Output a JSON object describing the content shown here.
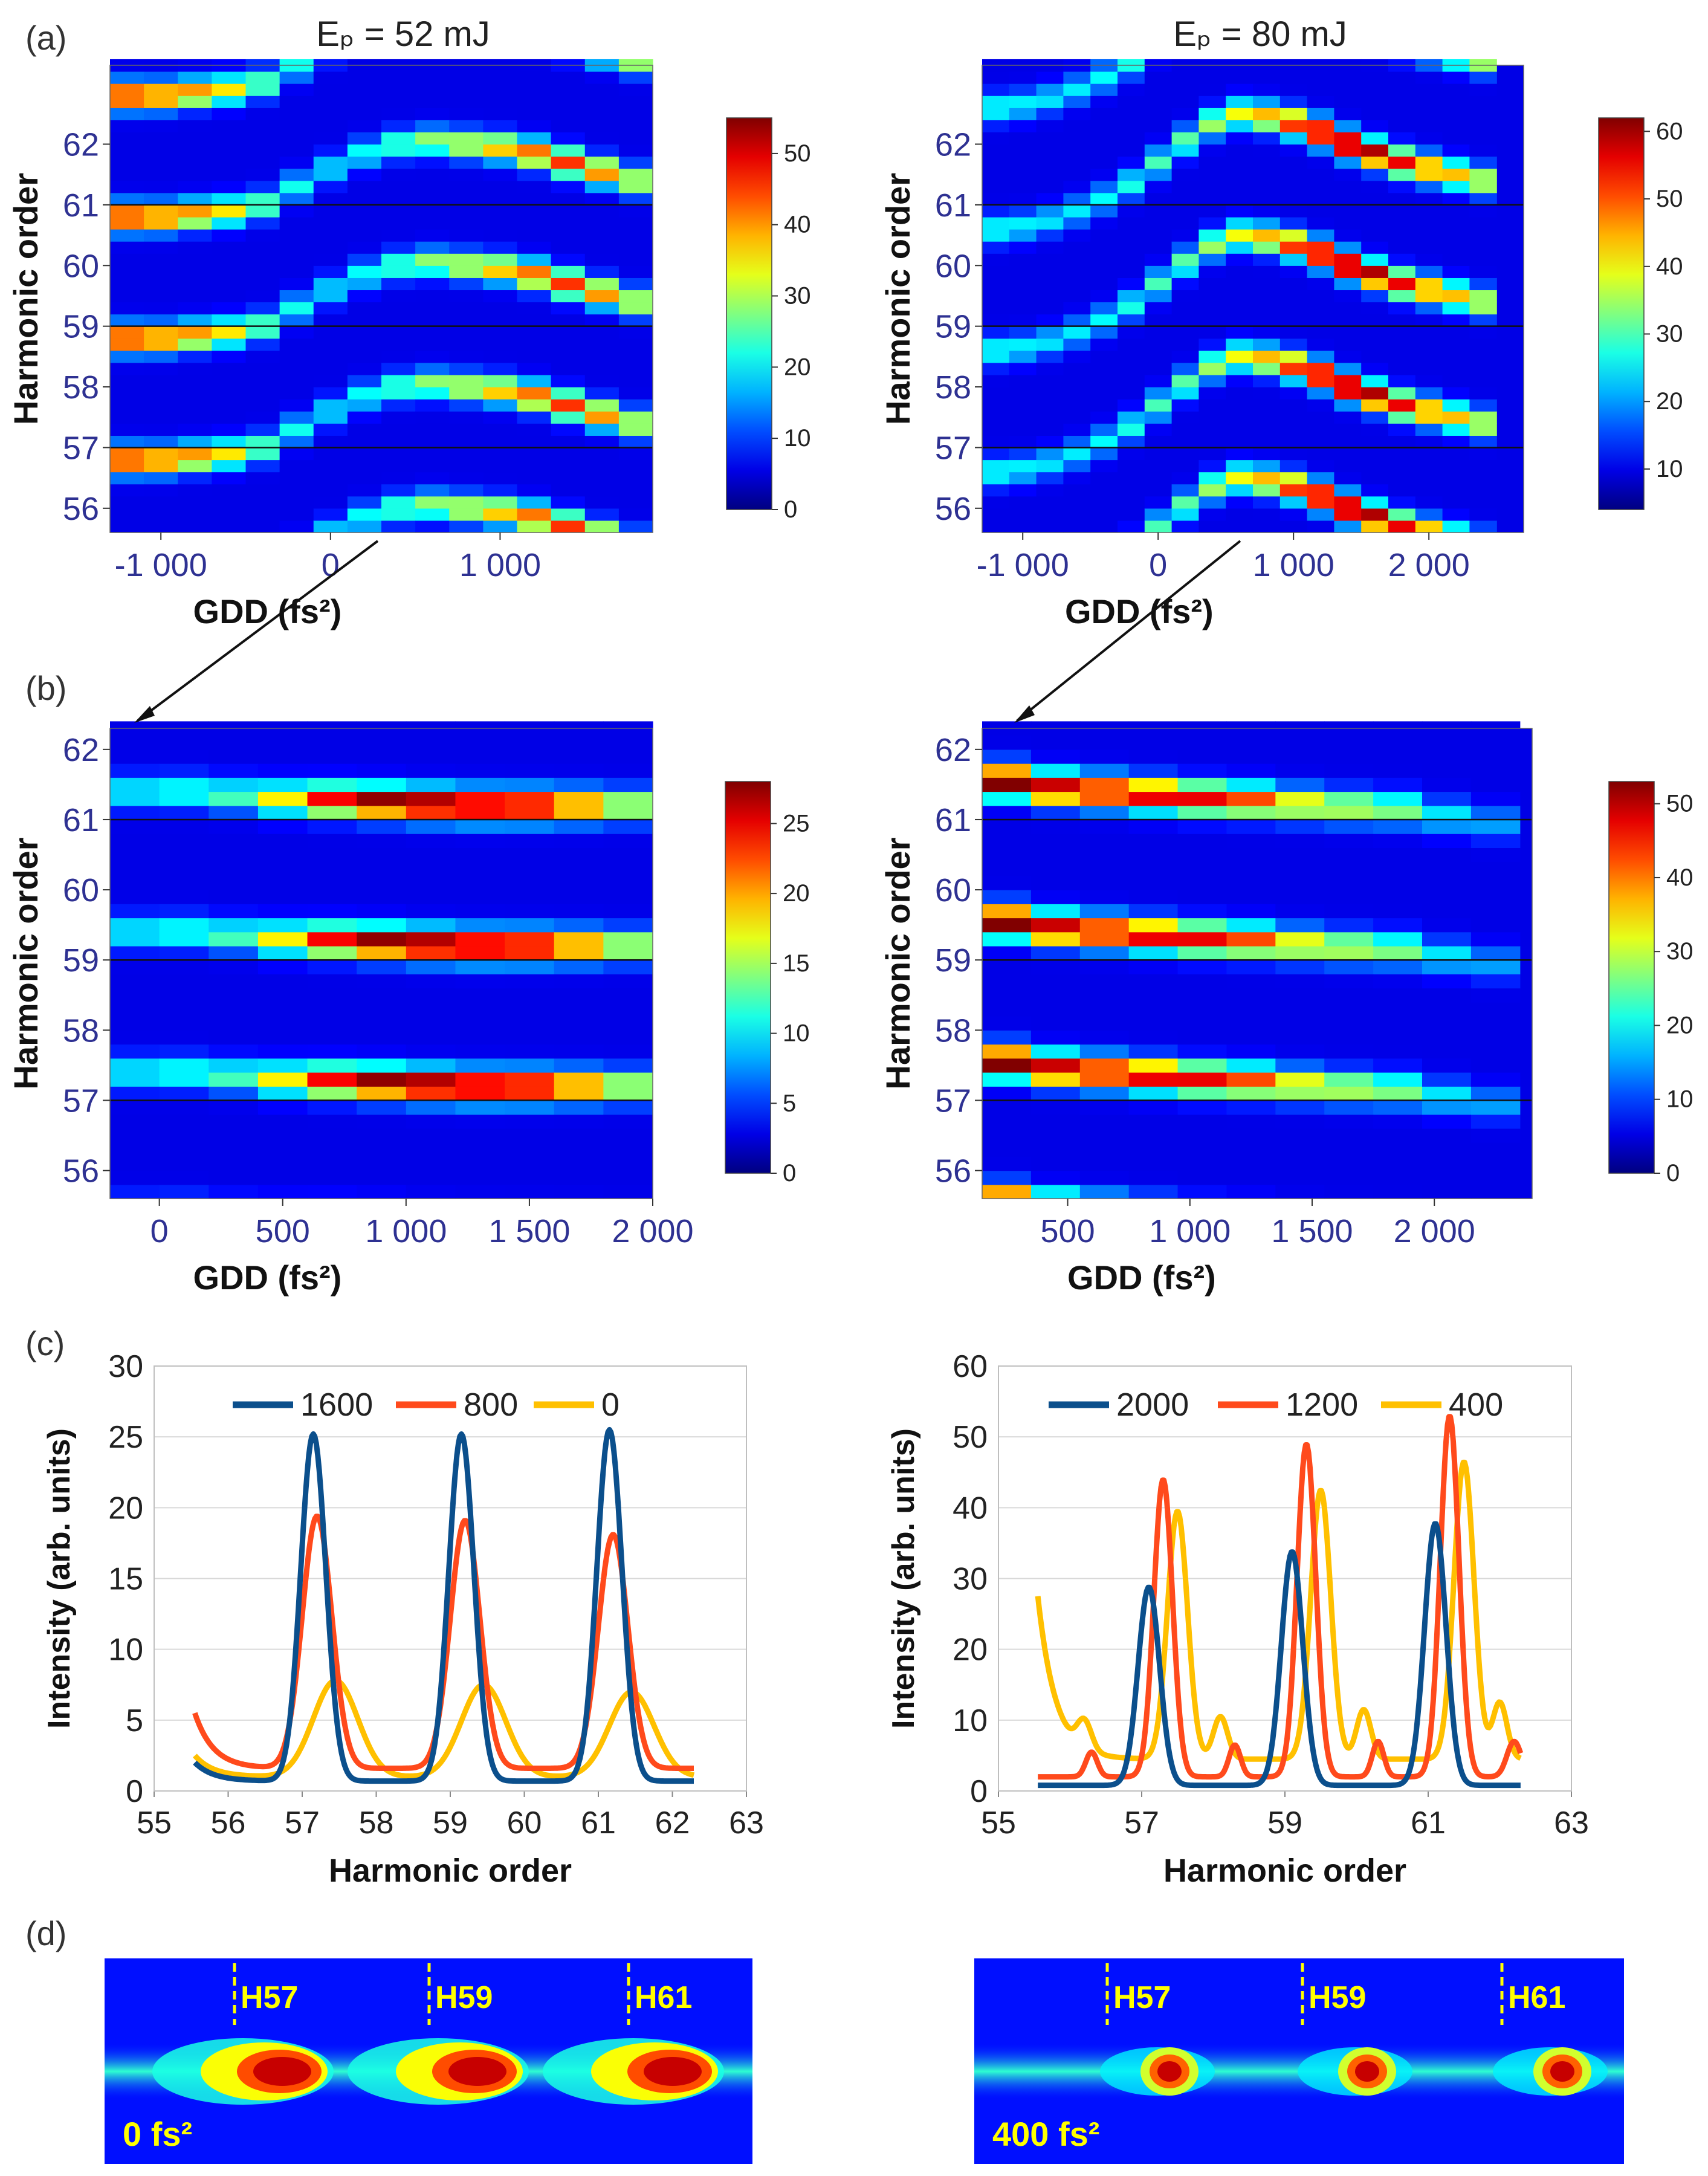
{
  "panel_labels": [
    "(a)",
    "(b)",
    "(c)",
    "(d)"
  ],
  "colors": {
    "tick_text": "#2e3192",
    "line_dark_blue": "#0b4f8c",
    "line_red": "#ff4a1c",
    "line_yellow": "#ffc000",
    "h_label": "#ffff00",
    "grid": "#d9d9d9"
  },
  "chart_data": [
    {
      "id": "a-left",
      "type": "heatmap",
      "title": "Eₚ = 52 mJ",
      "xlabel": "GDD (fs²)",
      "ylabel": "Harmonic order",
      "xlim": [
        -1300,
        1900
      ],
      "ylim": [
        55.6,
        63.3
      ],
      "xticks": [
        {
          "v": -1000,
          "label": "-1 000"
        },
        {
          "v": 0,
          "label": "0"
        },
        {
          "v": 1000,
          "label": "1 000"
        }
      ],
      "yticks": [
        {
          "v": 56,
          "label": "56"
        },
        {
          "v": 57,
          "label": "57"
        },
        {
          "v": 58,
          "label": "58"
        },
        {
          "v": 59,
          "label": "59"
        },
        {
          "v": 60,
          "label": "60"
        },
        {
          "v": 61,
          "label": "61"
        },
        {
          "v": 62,
          "label": "62"
        }
      ],
      "reference_lines": [
        57,
        59,
        61
      ],
      "colorbar": {
        "min": 0,
        "max": 55,
        "ticks": [
          0,
          10,
          20,
          30,
          40,
          50
        ]
      },
      "columns": [
        -1200,
        -1000,
        -800,
        -600,
        -400,
        -200,
        0,
        200,
        400,
        600,
        800,
        1000,
        1200,
        1400,
        1600,
        1800
      ],
      "peak_shift": [
        -0.2,
        -0.2,
        -0.15,
        -0.1,
        0.0,
        0.3,
        0.6,
        0.85,
        1.0,
        1.05,
        1.0,
        0.95,
        0.85,
        0.7,
        0.55,
        0.4
      ],
      "peak_intensity": [
        44,
        40,
        36,
        30,
        22,
        16,
        14,
        16,
        20,
        24,
        28,
        33,
        38,
        40,
        36,
        28
      ]
    },
    {
      "id": "a-right",
      "type": "heatmap",
      "title": "Eₚ = 80 mJ",
      "xlabel": "GDD (fs²)",
      "ylabel": "Harmonic order",
      "xlim": [
        -1300,
        2700
      ],
      "ylim": [
        55.6,
        63.3
      ],
      "xticks": [
        {
          "v": -1000,
          "label": "-1 000"
        },
        {
          "v": 0,
          "label": "0"
        },
        {
          "v": 1000,
          "label": "1 000"
        },
        {
          "v": 2000,
          "label": "2 000"
        }
      ],
      "yticks": [
        {
          "v": 56,
          "label": "56"
        },
        {
          "v": 57,
          "label": "57"
        },
        {
          "v": 58,
          "label": "58"
        },
        {
          "v": 59,
          "label": "59"
        },
        {
          "v": 60,
          "label": "60"
        },
        {
          "v": 61,
          "label": "61"
        },
        {
          "v": 62,
          "label": "62"
        }
      ],
      "reference_lines": [
        57,
        59,
        61
      ],
      "colorbar": {
        "min": 4,
        "max": 62,
        "ticks": [
          10,
          20,
          30,
          40,
          50,
          60
        ]
      },
      "columns": [
        -1200,
        -1000,
        -800,
        -600,
        -400,
        -200,
        0,
        200,
        400,
        600,
        800,
        1000,
        1200,
        1400,
        1600,
        1800,
        2000,
        2200,
        2400
      ],
      "peak_shift": [
        -0.4,
        -0.35,
        -0.25,
        -0.1,
        0.1,
        0.35,
        0.7,
        1.05,
        1.35,
        1.5,
        1.45,
        1.35,
        1.2,
        1.0,
        0.85,
        0.7,
        0.6,
        0.5,
        0.4
      ],
      "peak_intensity": [
        18,
        16,
        15,
        15,
        16,
        18,
        20,
        22,
        26,
        30,
        36,
        44,
        52,
        56,
        52,
        46,
        40,
        34,
        30
      ]
    },
    {
      "id": "b-left",
      "type": "heatmap",
      "xlabel": "GDD (fs²)",
      "ylabel": "Harmonic order",
      "xlim": [
        -200,
        2000
      ],
      "ylim": [
        55.6,
        62.3
      ],
      "xticks": [
        {
          "v": 0,
          "label": "0"
        },
        {
          "v": 500,
          "label": "500"
        },
        {
          "v": 1000,
          "label": "1 000"
        },
        {
          "v": 1500,
          "label": "1 500"
        },
        {
          "v": 2000,
          "label": "2 000"
        }
      ],
      "yticks": [
        {
          "v": 56,
          "label": "56"
        },
        {
          "v": 57,
          "label": "57"
        },
        {
          "v": 58,
          "label": "58"
        },
        {
          "v": 59,
          "label": "59"
        },
        {
          "v": 60,
          "label": "60"
        },
        {
          "v": 61,
          "label": "61"
        },
        {
          "v": 62,
          "label": "62"
        }
      ],
      "reference_lines": [
        57,
        59,
        61
      ],
      "colorbar": {
        "min": 0,
        "max": 28,
        "ticks": [
          0,
          5,
          10,
          15,
          20,
          25
        ]
      },
      "columns": [
        -100,
        100,
        300,
        500,
        700,
        900,
        1100,
        1300,
        1500,
        1700,
        1900
      ],
      "peak_shift": [
        0.4,
        0.4,
        0.35,
        0.3,
        0.28,
        0.25,
        0.22,
        0.2,
        0.2,
        0.2,
        0.2
      ],
      "peak_intensity": [
        8,
        9,
        10,
        15,
        22,
        26,
        27,
        26,
        25,
        20,
        14
      ]
    },
    {
      "id": "b-right",
      "type": "heatmap",
      "xlabel": "GDD (fs²)",
      "ylabel": "Harmonic order",
      "xlim": [
        150,
        2400
      ],
      "ylim": [
        55.6,
        62.3
      ],
      "xticks": [
        {
          "v": 500,
          "label": "500"
        },
        {
          "v": 1000,
          "label": "1 000"
        },
        {
          "v": 1500,
          "label": "1 500"
        },
        {
          "v": 2000,
          "label": "2 000"
        }
      ],
      "yticks": [
        {
          "v": 56,
          "label": "56"
        },
        {
          "v": 57,
          "label": "57"
        },
        {
          "v": 58,
          "label": "58"
        },
        {
          "v": 59,
          "label": "59"
        },
        {
          "v": 60,
          "label": "60"
        },
        {
          "v": 61,
          "label": "61"
        },
        {
          "v": 62,
          "label": "62"
        }
      ],
      "reference_lines": [
        57,
        59,
        61
      ],
      "colorbar": {
        "min": 0,
        "max": 53,
        "ticks": [
          0,
          10,
          20,
          30,
          40,
          50
        ]
      },
      "columns": [
        250,
        450,
        650,
        850,
        1050,
        1250,
        1450,
        1650,
        1850,
        2050,
        2250
      ],
      "peak_shift": [
        0.55,
        0.45,
        0.4,
        0.35,
        0.3,
        0.27,
        0.22,
        0.18,
        0.15,
        0.05,
        -0.05
      ],
      "peak_intensity": [
        50,
        46,
        44,
        44,
        42,
        38,
        30,
        26,
        22,
        14,
        10
      ]
    },
    {
      "id": "c-left",
      "type": "line",
      "xlabel": "Harmonic order",
      "ylabel": "Intensity (arb. units)",
      "xlim": [
        55,
        63
      ],
      "ylim": [
        0,
        30
      ],
      "xticks": [
        55,
        56,
        57,
        58,
        59,
        60,
        61,
        62,
        63
      ],
      "yticks": [
        0,
        5,
        10,
        15,
        20,
        25,
        30
      ],
      "legend_position": "top",
      "series": [
        {
          "name": "1600",
          "color": "#0b4f8c",
          "baseline": 0.7,
          "base_start": 2.0,
          "peaks": [
            {
              "x": 57.15,
              "h": 24.5,
              "w": 0.17
            },
            {
              "x": 59.15,
              "h": 24.5,
              "w": 0.17
            },
            {
              "x": 61.15,
              "h": 24.8,
              "w": 0.17
            }
          ]
        },
        {
          "name": "800",
          "color": "#ff4a1c",
          "baseline": 1.6,
          "base_start": 5.5,
          "peaks": [
            {
              "x": 57.2,
              "h": 17.8,
              "w": 0.2
            },
            {
              "x": 59.2,
              "h": 17.5,
              "w": 0.2
            },
            {
              "x": 61.2,
              "h": 16.5,
              "w": 0.2
            }
          ]
        },
        {
          "name": "0",
          "color": "#ffc000",
          "baseline": 1.0,
          "base_start": 2.5,
          "peaks": [
            {
              "x": 57.45,
              "h": 6.8,
              "w": 0.3
            },
            {
              "x": 59.45,
              "h": 6.5,
              "w": 0.3
            },
            {
              "x": 61.45,
              "h": 6.0,
              "w": 0.3
            }
          ]
        }
      ]
    },
    {
      "id": "c-right",
      "type": "line",
      "xlabel": "Harmonic order",
      "ylabel": "Intensity (arb. units)",
      "xlim": [
        55,
        63
      ],
      "ylim": [
        0,
        60
      ],
      "xticks": [
        55,
        57,
        59,
        61,
        63
      ],
      "yticks": [
        0,
        10,
        20,
        30,
        40,
        50,
        60
      ],
      "legend_position": "top",
      "series": [
        {
          "name": "2000",
          "color": "#0b4f8c",
          "baseline": 0.8,
          "base_start": 0.8,
          "peaks": [
            {
              "x": 57.1,
              "h": 28,
              "w": 0.15
            },
            {
              "x": 59.1,
              "h": 33,
              "w": 0.15
            },
            {
              "x": 61.1,
              "h": 37,
              "w": 0.15
            }
          ]
        },
        {
          "name": "1200",
          "color": "#ff4a1c",
          "baseline": 2.0,
          "base_start": 2.0,
          "peaks": [
            {
              "x": 57.3,
              "h": 42,
              "w": 0.13
            },
            {
              "x": 59.3,
              "h": 47,
              "w": 0.13
            },
            {
              "x": 61.3,
              "h": 51,
              "w": 0.13
            },
            {
              "x": 56.3,
              "h": 3.5,
              "w": 0.08
            },
            {
              "x": 58.3,
              "h": 4.5,
              "w": 0.08
            },
            {
              "x": 60.3,
              "h": 5,
              "w": 0.08
            },
            {
              "x": 62.2,
              "h": 5,
              "w": 0.1
            }
          ]
        },
        {
          "name": "400",
          "color": "#ffc000",
          "baseline": 4.5,
          "base_start": 27.5,
          "peaks": [
            {
              "x": 57.5,
              "h": 35,
              "w": 0.14
            },
            {
              "x": 59.5,
              "h": 38,
              "w": 0.14
            },
            {
              "x": 61.5,
              "h": 42,
              "w": 0.14
            },
            {
              "x": 56.2,
              "h": 4,
              "w": 0.1
            },
            {
              "x": 58.1,
              "h": 6,
              "w": 0.1
            },
            {
              "x": 60.1,
              "h": 7,
              "w": 0.1
            },
            {
              "x": 62.0,
              "h": 8,
              "w": 0.1
            }
          ]
        }
      ]
    },
    {
      "id": "d-left",
      "type": "heatmap",
      "harmonic_labels": [
        "H57",
        "H59",
        "H61"
      ],
      "annotation": "0 fs²",
      "spots": [
        {
          "harmonic": 57,
          "intensity": 1.0
        },
        {
          "harmonic": 59,
          "intensity": 1.0
        },
        {
          "harmonic": 61,
          "intensity": 1.0
        }
      ]
    },
    {
      "id": "d-right",
      "type": "heatmap",
      "harmonic_labels": [
        "H57",
        "H59",
        "H61"
      ],
      "annotation": "400 fs²",
      "spots": [
        {
          "harmonic": 57,
          "intensity": 1.0
        },
        {
          "harmonic": 59,
          "intensity": 1.0
        },
        {
          "harmonic": 61,
          "intensity": 1.0
        }
      ]
    }
  ]
}
